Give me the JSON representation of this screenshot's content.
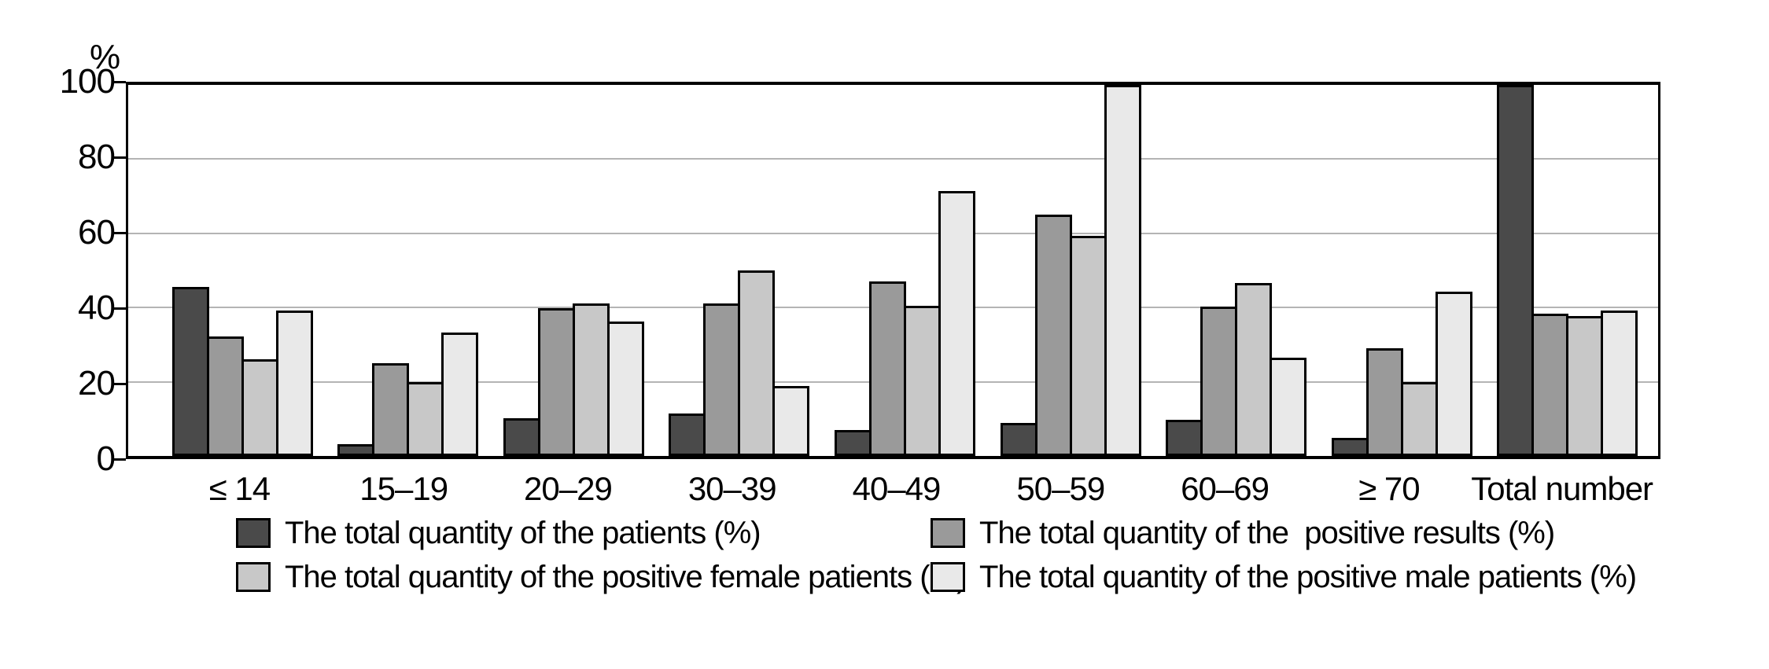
{
  "figure": {
    "background": "#ffffff",
    "frame_color": "#000000",
    "gridline_color": "#b4b4b4"
  },
  "chart_data": {
    "type": "bar",
    "title": "",
    "xlabel": "",
    "ylabel": "%",
    "ylim": [
      0,
      100
    ],
    "yticks": [
      0,
      20,
      40,
      60,
      80,
      100
    ],
    "grid": true,
    "legend_position": "bottom",
    "categories": [
      "≤ 14",
      "15–19",
      "20–29",
      "30–39",
      "40–49",
      "50–59",
      "60–69",
      "≥ 70",
      "Total number"
    ],
    "series": [
      {
        "key": "patients",
        "name": "The total quantity of the patients (%)",
        "color": "#4a4a4a",
        "values": [
          45.5,
          3.2,
          10.2,
          11.5,
          7.0,
          9.0,
          9.7,
          4.9,
          100
        ]
      },
      {
        "key": "positive-results",
        "name": "The total quantity of the  positive results (%)",
        "color": "#9a9a9a",
        "values": [
          32.2,
          25.0,
          39.8,
          41.1,
          47.1,
          65.0,
          40.3,
          29.0,
          38.4
        ]
      },
      {
        "key": "positive-female",
        "name": "The total quantity of the positive female patients (%)",
        "color": "#c8c8c8",
        "values": [
          26.0,
          19.9,
          41.0,
          49.9,
          40.5,
          59.4,
          46.7,
          20.0,
          37.8
        ]
      },
      {
        "key": "positive-male",
        "name": "The total quantity of the positive male patients (%)",
        "color": "#e9e9e9",
        "values": [
          39.1,
          33.3,
          36.3,
          18.8,
          71.3,
          100,
          26.5,
          44.3,
          39.3
        ]
      }
    ]
  }
}
